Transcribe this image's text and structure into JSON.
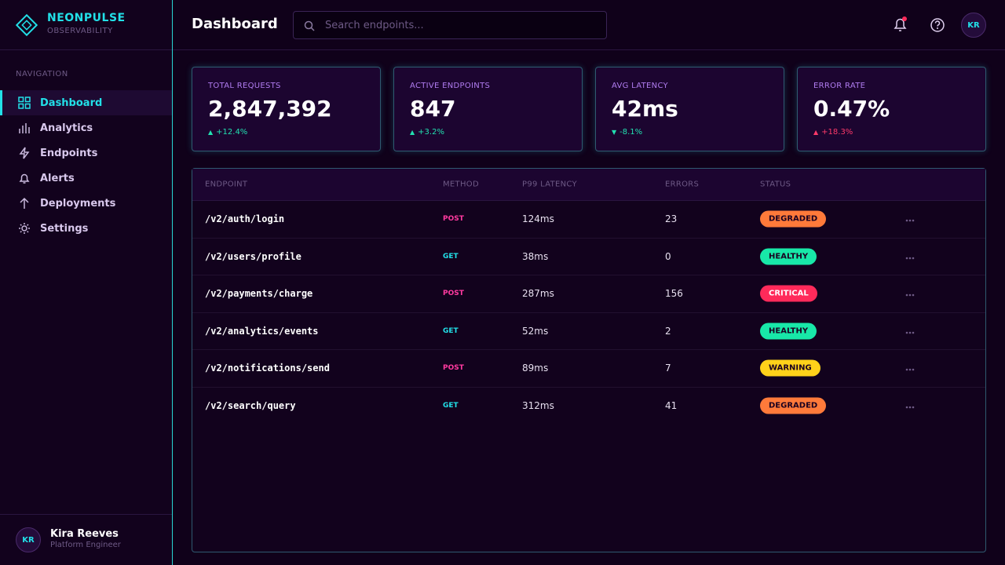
{
  "brand": {
    "name": "NEONPULSE",
    "tagline": "OBSERVABILITY"
  },
  "nav": {
    "heading": "NAVIGATION",
    "items": [
      "Dashboard",
      "Analytics",
      "Endpoints",
      "Alerts",
      "Deployments",
      "Settings"
    ]
  },
  "user": {
    "initials": "KR",
    "name": "Kira Reeves",
    "role": "Platform Engineer"
  },
  "header": {
    "title": "Dashboard",
    "search_placeholder": "Search endpoints...",
    "avatar": "KR"
  },
  "stats": [
    {
      "label": "TOTAL REQUESTS",
      "value": "2,847,392",
      "change": "+12.4%"
    },
    {
      "label": "ACTIVE ENDPOINTS",
      "value": "847",
      "change": "+3.2%"
    },
    {
      "label": "AVG LATENCY",
      "value": "42ms",
      "change": "-8.1%"
    },
    {
      "label": "ERROR RATE",
      "value": "0.47%",
      "change": "+18.3%"
    }
  ],
  "table": {
    "columns": [
      "ENDPOINT",
      "METHOD",
      "P99 LATENCY",
      "ERRORS",
      "STATUS"
    ],
    "rows": [
      [
        "/v2/auth/login",
        "POST",
        "124ms",
        "23",
        "DEGRADED"
      ],
      [
        "/v2/users/profile",
        "GET",
        "38ms",
        "0",
        "HEALTHY"
      ],
      [
        "/v2/payments/charge",
        "POST",
        "287ms",
        "156",
        "CRITICAL"
      ],
      [
        "/v2/analytics/events",
        "GET",
        "52ms",
        "2",
        "HEALTHY"
      ],
      [
        "/v2/notifications/send",
        "POST",
        "89ms",
        "7",
        "WARNING"
      ],
      [
        "/v2/search/query",
        "GET",
        "312ms",
        "41",
        "DEGRADED"
      ]
    ]
  }
}
